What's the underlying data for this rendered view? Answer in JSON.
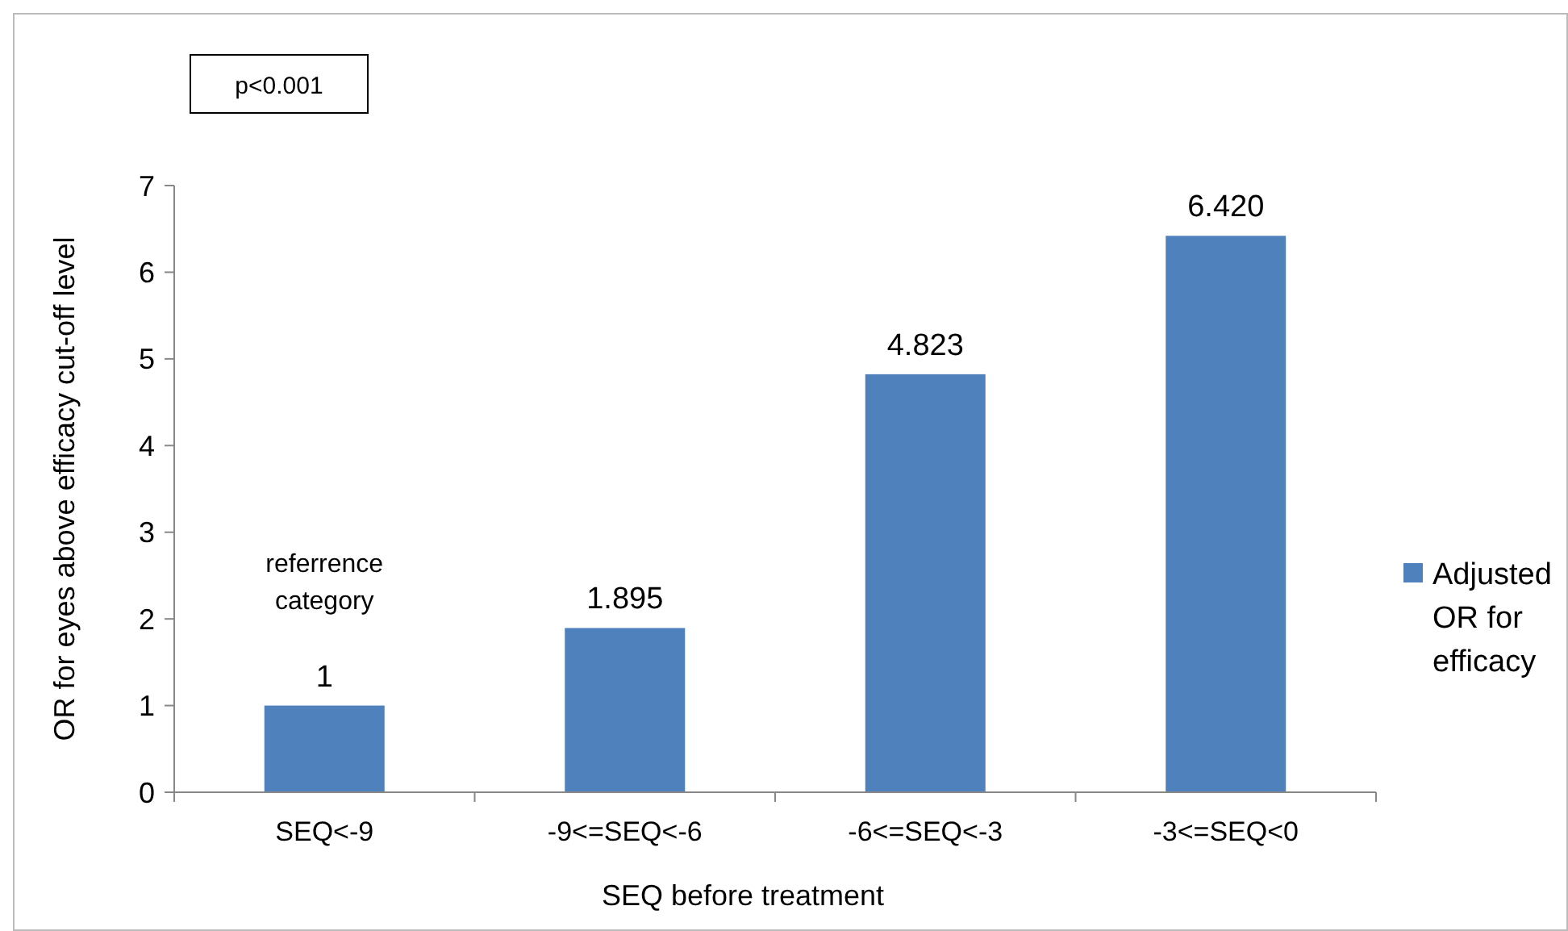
{
  "chart_data": {
    "type": "bar",
    "xlabel": "SEQ before treatment",
    "ylabel": "OR for eyes above efficacy cut-off level",
    "categories": [
      "SEQ<-9",
      "-9<=SEQ<-6",
      "-6<=SEQ<-3",
      "-3<=SEQ<0"
    ],
    "series": [
      {
        "name": "Adjusted OR for efficacy",
        "color": "#4f81bd",
        "values": [
          1,
          1.895,
          4.823,
          6.42
        ],
        "value_labels": [
          "1",
          "1.895",
          "4.823",
          "6.420"
        ]
      }
    ],
    "ylim": [
      0,
      7
    ],
    "yticks": [
      0,
      1,
      2,
      3,
      4,
      5,
      6,
      7
    ],
    "grid": false,
    "legend": "right",
    "annotations": [
      "p<0.001",
      "referrence category"
    ]
  }
}
